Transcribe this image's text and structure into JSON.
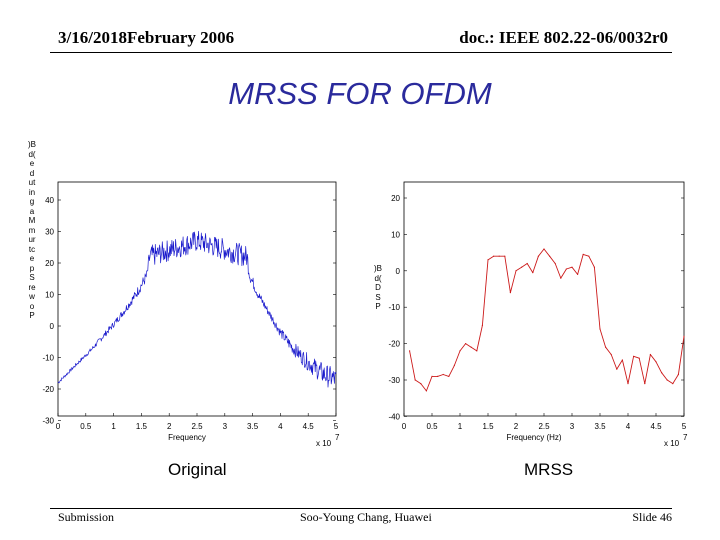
{
  "header": {
    "left": "3/16/2018February 2006",
    "right": "doc.: IEEE 802.22-06/0032r0"
  },
  "title": "MRSS FOR OFDM",
  "footer": {
    "left": "Submission",
    "center": "Soo-Young Chang, Huawei",
    "right": "Slide 46"
  },
  "captions": {
    "left": "Original",
    "right": "MRSS"
  },
  "chart_data": [
    {
      "type": "line",
      "name": "original-spectrum",
      "xlabel": "Frequency",
      "ylabel": ")Bd( edutingaM murtcepS rewoP",
      "x_multiplier": "x 10",
      "x_multiplier_exp": "7",
      "xlim": [
        0,
        5
      ],
      "ylim": [
        -30,
        45
      ],
      "xticks": [
        "0",
        "0.5",
        "1",
        "1.5",
        "2",
        "2.5",
        "3",
        "3.5",
        "4",
        "4.5",
        "5"
      ],
      "yticks": [
        "-30",
        "-20",
        "-10",
        "0",
        "10",
        "20",
        "30",
        "40"
      ],
      "color": "#1a1acc",
      "shape": {
        "x": [
          0.0,
          0.2,
          0.4,
          0.6,
          0.8,
          1.0,
          1.2,
          1.4,
          1.6,
          1.65,
          2.5,
          3.4,
          3.45,
          3.6,
          3.8,
          4.0,
          4.2,
          4.4,
          4.6,
          4.8,
          5.0
        ],
        "y": [
          -18,
          -14.5,
          -11,
          -7.5,
          -3.5,
          0.5,
          5,
          10,
          16,
          22,
          27,
          22,
          16,
          10,
          4,
          -2,
          -6.5,
          -10,
          -13,
          -15.5,
          -17
        ]
      },
      "noise_amp": [
        0.5,
        0.5,
        0.6,
        0.7,
        0.9,
        1.0,
        1.2,
        1.5,
        2.0,
        3.5,
        3.5,
        3.5,
        2.0,
        1.5,
        1.3,
        1.5,
        2.0,
        2.5,
        3.0,
        3.5,
        3.5
      ]
    },
    {
      "type": "line",
      "name": "mrss-spectrum",
      "xlabel": "Frequency (Hz)",
      "ylabel": ")Bd( DSP",
      "x_multiplier": "x 10",
      "x_multiplier_exp": "7",
      "xlim": [
        0,
        5
      ],
      "ylim": [
        -40,
        20
      ],
      "xticks": [
        "0",
        "0.5",
        "1",
        "1.5",
        "2",
        "2.5",
        "3",
        "3.5",
        "4",
        "4.5",
        "5"
      ],
      "yticks": [
        "-40",
        "-30",
        "-20",
        "-10",
        "0",
        "10",
        "20"
      ],
      "color": "#cc1a1a",
      "x": [
        0.1,
        0.2,
        0.3,
        0.4,
        0.5,
        0.6,
        0.7,
        0.8,
        0.9,
        1.0,
        1.1,
        1.2,
        1.3,
        1.4,
        1.5,
        1.6,
        1.7,
        1.8,
        1.9,
        2.0,
        2.1,
        2.2,
        2.3,
        2.4,
        2.5,
        2.6,
        2.7,
        2.8,
        2.9,
        3.0,
        3.1,
        3.2,
        3.3,
        3.4,
        3.5,
        3.6,
        3.7,
        3.8,
        3.9,
        4.0,
        4.1,
        4.2,
        4.3,
        4.4,
        4.5,
        4.6,
        4.7,
        4.8,
        4.9,
        5.0
      ],
      "y": [
        -22,
        -30,
        -31,
        -33,
        -29,
        -29,
        -28.5,
        -29,
        -26,
        -22,
        -20,
        -21,
        -22,
        -15,
        3,
        4,
        4,
        4,
        -6,
        0,
        1,
        2,
        -0.5,
        4,
        6,
        4,
        2,
        -2,
        0.5,
        1,
        -1,
        4.5,
        4,
        1,
        -16,
        -21,
        -23,
        -27,
        -24.5,
        -31,
        -23.5,
        -24,
        -31,
        -23,
        -25,
        -28,
        -30,
        -31,
        -28.5,
        -18
      ]
    }
  ]
}
